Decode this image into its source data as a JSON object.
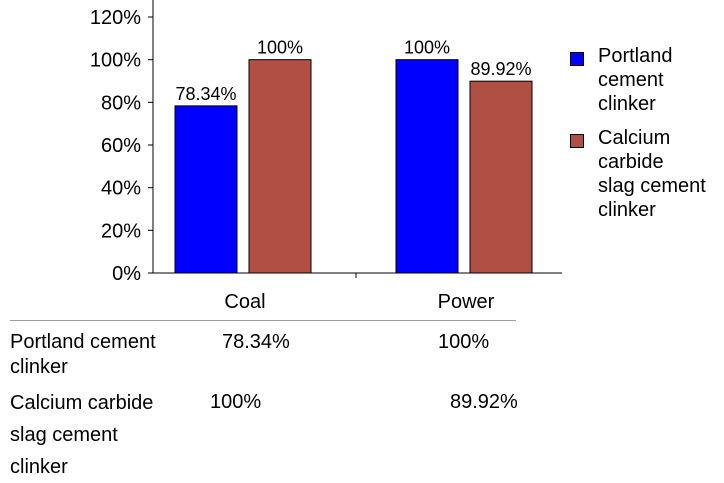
{
  "chart_data": {
    "type": "bar",
    "categories": [
      "Coal",
      "Power"
    ],
    "series": [
      {
        "name": "Portland cement clinker",
        "values": [
          78.34,
          100
        ],
        "color": "#0000ff",
        "labels": [
          "78.34%",
          "100%"
        ]
      },
      {
        "name": "Calcium carbide slag cement clinker",
        "values": [
          100,
          89.92
        ],
        "color": "#b05045",
        "labels": [
          "100%",
          "89.92%"
        ]
      }
    ],
    "ylim": [
      0,
      120
    ],
    "yticks": [
      0,
      20,
      40,
      60,
      80,
      100,
      120
    ],
    "ytick_labels": [
      "0%",
      "20%",
      "40%",
      "60%",
      "80%",
      "100%",
      "120%"
    ],
    "grid": false,
    "legend_position": "right"
  },
  "legend": [
    {
      "lines": [
        "Portland",
        "cement",
        "clinker"
      ],
      "color": "#0000ff"
    },
    {
      "lines": [
        "Calcium",
        "carbide",
        "slag cement",
        "clinker"
      ],
      "color": "#b05045"
    }
  ],
  "table": {
    "rows": [
      {
        "label_lines": [
          "Portland cement",
          "clinker"
        ],
        "coal": "78.34%",
        "power": "100%"
      },
      {
        "label_lines": [
          "Calcium carbide",
          "slag cement",
          "clinker"
        ],
        "coal": "100%",
        "power": "89.92%"
      }
    ]
  }
}
